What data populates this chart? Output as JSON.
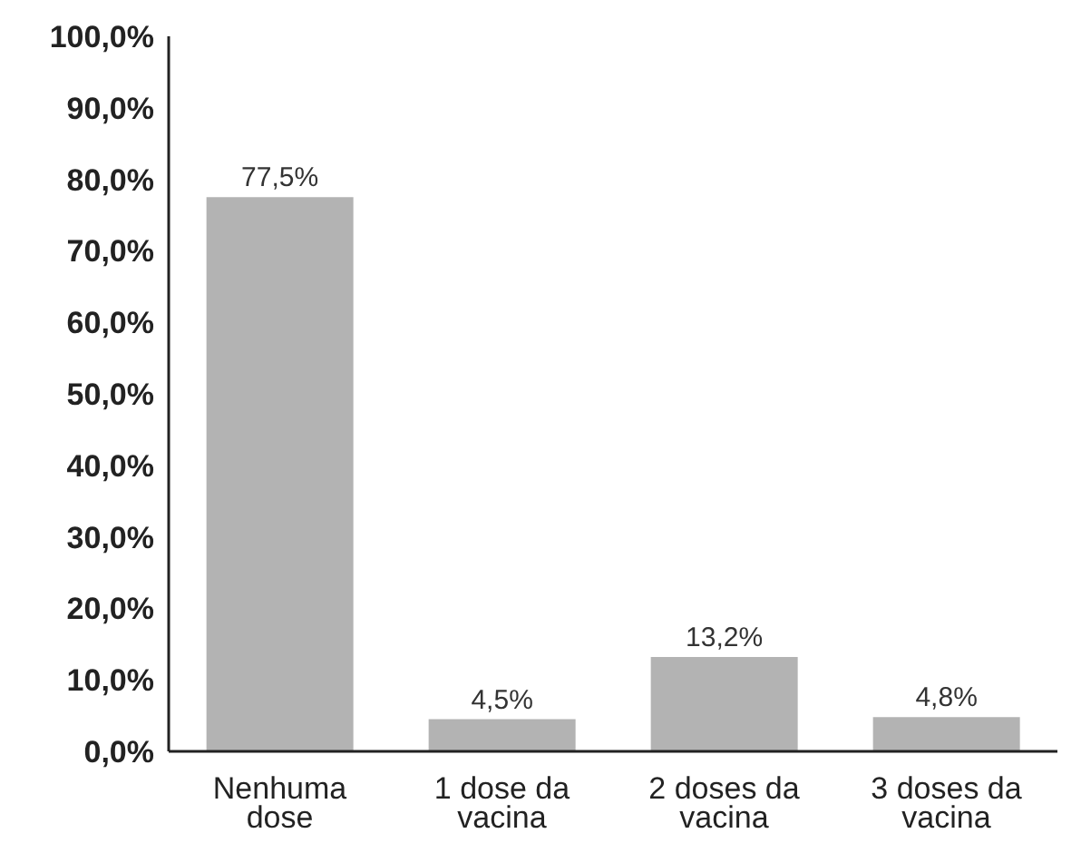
{
  "chart_data": {
    "type": "bar",
    "categories": [
      "Nenhuma dose",
      "1 dose da vacina",
      "2 doses da vacina",
      "3 doses da vacina"
    ],
    "values": [
      77.5,
      4.5,
      13.2,
      4.8
    ],
    "value_labels": [
      "77,5%",
      "4,5%",
      "13,2%",
      "4,8%"
    ],
    "color": "#b3b3b3",
    "ylim": [
      0,
      100
    ],
    "yticks": [
      {
        "value": 0,
        "label": "0,0%"
      },
      {
        "value": 10,
        "label": "10,0%"
      },
      {
        "value": 20,
        "label": "20,0%"
      },
      {
        "value": 30,
        "label": "30,0%"
      },
      {
        "value": 40,
        "label": "40,0%"
      },
      {
        "value": 50,
        "label": "50,0%"
      },
      {
        "value": 60,
        "label": "60,0%"
      },
      {
        "value": 70,
        "label": "70,0%"
      },
      {
        "value": 80,
        "label": "80,0%"
      },
      {
        "value": 90,
        "label": "90,0%"
      },
      {
        "value": 100,
        "label": "100,0%"
      }
    ],
    "grid": false,
    "legend": false
  }
}
